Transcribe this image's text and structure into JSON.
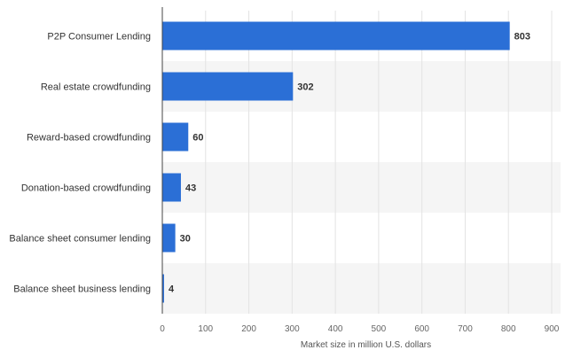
{
  "chart_data": {
    "type": "bar",
    "orientation": "horizontal",
    "categories": [
      "P2P Consumer Lending",
      "Real estate crowdfunding",
      "Reward-based crowdfunding",
      "Donation-based crowdfunding",
      "Balance sheet consumer lending",
      "Balance sheet business lending"
    ],
    "values": [
      803,
      302,
      60,
      43,
      30,
      4
    ],
    "value_labels": [
      "803",
      "302",
      "60",
      "43",
      "30",
      "4"
    ],
    "xlabel": "Market size in million U.S. dollars",
    "xlim": [
      0,
      900
    ],
    "xticks": [
      "0",
      "100",
      "200",
      "300",
      "400",
      "500",
      "600",
      "700",
      "800",
      "900"
    ],
    "grid": "vertical",
    "bar_color": "#2b6fd6",
    "band_color": "#f5f5f5"
  }
}
